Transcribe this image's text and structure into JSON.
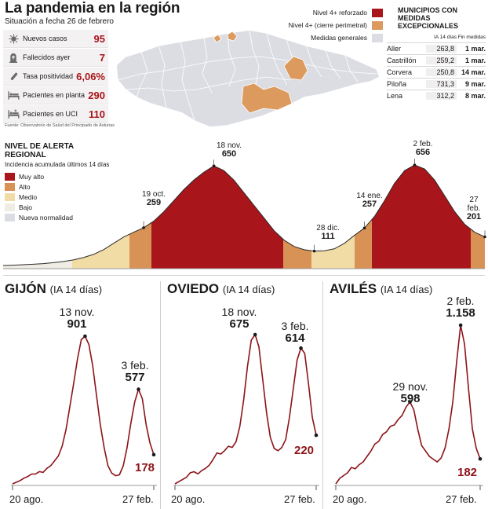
{
  "header": {
    "title": "La pandemia en la región",
    "subtitle": "Situación a fecha 26 de febrero",
    "source": "Fuente: Observatorio de Salud del Principado de Asturias"
  },
  "stats": [
    {
      "label": "Nuevos casos",
      "value": "95",
      "icon": "virus-icon"
    },
    {
      "label": "Fallecidos ayer",
      "value": "7",
      "icon": "tombstone-icon"
    },
    {
      "label": "Tasa positividad",
      "value": "6,06%",
      "icon": "test-tube-icon"
    },
    {
      "label": "Pacientes en planta",
      "value": "290",
      "icon": "hospital-bed-icon"
    },
    {
      "label": "Pacientes en UCI",
      "value": "110",
      "icon": "icu-bed-icon"
    }
  ],
  "map_legend": [
    {
      "label": "Nivel 4+ reforzado",
      "color": "#a8151b"
    },
    {
      "label": "Nivel 4+ (cierre perimetral)",
      "color": "#dc9a5e"
    },
    {
      "label": "Medidas generales",
      "color": "#dcdde3"
    }
  ],
  "municipalities": {
    "title": "MUNICIPIOS CON MEDIDAS EXCEPCIONALES",
    "col_ia": "IA 14 días",
    "col_end": "Fin medidas",
    "rows": [
      {
        "name": "Aller",
        "ia": "263,8",
        "end": "1 mar."
      },
      {
        "name": "Castrillón",
        "ia": "259,2",
        "end": "1 mar."
      },
      {
        "name": "Corvera",
        "ia": "250,8",
        "end": "14 mar."
      },
      {
        "name": "Piloña",
        "ia": "731,3",
        "end": "9 mar."
      },
      {
        "name": "Lena",
        "ia": "312,2",
        "end": "8 mar."
      }
    ]
  },
  "alert": {
    "title_line1": "NIVEL DE ALERTA",
    "title_line2": "REGIONAL",
    "subtitle": "Incidencia acumulada últimos 14 días",
    "legend": [
      {
        "label": "Muy alto",
        "color": "#a8151b"
      },
      {
        "label": "Alto",
        "color": "#d99255"
      },
      {
        "label": "Medio",
        "color": "#f2dca5"
      },
      {
        "label": "Bajo",
        "color": "#efece3"
      },
      {
        "label": "Nueva normalidad",
        "color": "#dcdde3"
      }
    ],
    "peaks": [
      {
        "date": "19 oct.",
        "value": "259"
      },
      {
        "date": "18 nov.",
        "value": "650"
      },
      {
        "date": "28 dic.",
        "value": "111"
      },
      {
        "date": "14 ene.",
        "value": "257"
      },
      {
        "date": "2 feb.",
        "value": "656"
      },
      {
        "date": "27 feb.",
        "value": "201"
      }
    ]
  },
  "chart_data": [
    {
      "type": "area",
      "title": "NIVEL DE ALERTA REGIONAL",
      "y": [
        20,
        22,
        25,
        28,
        32,
        38,
        45,
        55,
        70,
        90,
        120,
        160,
        200,
        230,
        259,
        300,
        360,
        430,
        500,
        560,
        610,
        650,
        620,
        560,
        480,
        400,
        320,
        240,
        180,
        140,
        120,
        111,
        113,
        125,
        160,
        210,
        257,
        330,
        430,
        540,
        620,
        656,
        630,
        560,
        460,
        360,
        280,
        230,
        201
      ],
      "annotations": [
        {
          "label": "19 oct.",
          "value": 259
        },
        {
          "label": "18 nov.",
          "value": 650
        },
        {
          "label": "28 dic.",
          "value": 111
        },
        {
          "label": "14 ene.",
          "value": 257
        },
        {
          "label": "2 feb.",
          "value": 656
        },
        {
          "label": "27 feb.",
          "value": 201
        }
      ]
    },
    {
      "type": "line",
      "title": "GIJÓN",
      "subtitle": "(IA 14 días)",
      "x_start": "20 ago.",
      "x_end": "27 feb.",
      "y": [
        0,
        10,
        20,
        35,
        45,
        60,
        60,
        75,
        70,
        95,
        110,
        140,
        170,
        230,
        330,
        470,
        610,
        760,
        880,
        901,
        850,
        720,
        540,
        360,
        220,
        110,
        65,
        50,
        55,
        110,
        220,
        370,
        500,
        577,
        520,
        360,
        250,
        178
      ],
      "annotations": [
        {
          "date": "13 nov.",
          "value": "901",
          "idx": 19
        },
        {
          "date": "3 feb.",
          "value": "577",
          "idx": 33
        }
      ],
      "last": "178"
    },
    {
      "type": "line",
      "title": "OVIEDO",
      "subtitle": "(IA 14 días)",
      "x_start": "20 ago.",
      "x_end": "27 feb.",
      "y": [
        0,
        10,
        20,
        30,
        50,
        55,
        45,
        60,
        70,
        85,
        110,
        140,
        135,
        150,
        170,
        165,
        190,
        260,
        380,
        530,
        650,
        675,
        620,
        470,
        320,
        210,
        160,
        150,
        165,
        200,
        300,
        430,
        560,
        614,
        590,
        450,
        300,
        220
      ],
      "annotations": [
        {
          "date": "18 nov.",
          "value": "675",
          "idx": 21
        },
        {
          "date": "3 feb.",
          "value": "614",
          "idx": 33
        }
      ],
      "last": "220"
    },
    {
      "type": "line",
      "title": "AVILÉS",
      "subtitle": "(IA 14 días)",
      "x_start": "20 ago.",
      "x_end": "27 feb.",
      "y": [
        0,
        40,
        60,
        80,
        120,
        110,
        140,
        160,
        200,
        240,
        290,
        310,
        360,
        380,
        420,
        430,
        470,
        500,
        560,
        598,
        540,
        400,
        280,
        240,
        200,
        180,
        160,
        190,
        260,
        400,
        600,
        900,
        1158,
        1020,
        700,
        400,
        260,
        182
      ],
      "annotations": [
        {
          "date": "29 nov.",
          "value": "598",
          "idx": 19
        },
        {
          "date": "2 feb.",
          "value": "1.158",
          "idx": 32
        }
      ],
      "last": "182"
    }
  ]
}
